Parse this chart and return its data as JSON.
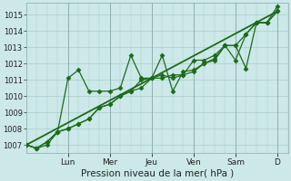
{
  "bg_color": "#cce8e8",
  "grid_color": "#aacccc",
  "line_color": "#1a6b1a",
  "marker_color": "#1a6b1a",
  "xlabel": "Pression niveau de la mer( hPa )",
  "ylim": [
    1006.5,
    1015.7
  ],
  "yticks": [
    1007,
    1008,
    1009,
    1010,
    1011,
    1012,
    1013,
    1014,
    1015
  ],
  "day_labels": [
    "Lun",
    "Mer",
    "Jeu",
    "Ven",
    "Sam",
    "D"
  ],
  "day_positions": [
    4,
    8,
    12,
    16,
    20,
    24
  ],
  "xlim": [
    0,
    25
  ],
  "series1_x": [
    0,
    1,
    2,
    3,
    4,
    5,
    6,
    7,
    8,
    9,
    10,
    11,
    12,
    13,
    14,
    15,
    16,
    17,
    18,
    19,
    20,
    21,
    22,
    23,
    24
  ],
  "series1_y": [
    1007.0,
    1006.8,
    1007.0,
    1007.8,
    1008.0,
    1008.3,
    1008.6,
    1009.3,
    1009.5,
    1010.0,
    1010.3,
    1010.5,
    1011.1,
    1011.3,
    1011.1,
    1011.3,
    1011.5,
    1012.0,
    1012.3,
    1013.1,
    1013.1,
    1013.8,
    1014.5,
    1014.5,
    1015.2
  ],
  "series2_x": [
    0,
    1,
    2,
    3,
    4,
    5,
    6,
    7,
    8,
    9,
    10,
    11,
    12,
    13,
    14,
    15,
    16,
    17,
    18,
    19,
    20,
    21,
    22,
    23,
    24
  ],
  "series2_y": [
    1007.0,
    1006.8,
    1007.2,
    1007.8,
    1011.1,
    1011.6,
    1010.3,
    1010.3,
    1010.3,
    1010.5,
    1012.5,
    1011.1,
    1011.1,
    1011.1,
    1011.3,
    1011.3,
    1012.2,
    1012.2,
    1012.5,
    1013.1,
    1012.2,
    1013.8,
    1014.5,
    1014.5,
    1015.2
  ],
  "series3_x": [
    0,
    1,
    2,
    3,
    4,
    5,
    6,
    7,
    8,
    9,
    10,
    11,
    12,
    13,
    14,
    15,
    16,
    17,
    18,
    19,
    20,
    21,
    22,
    23,
    24
  ],
  "series3_y": [
    1007.0,
    1006.8,
    1007.2,
    1007.8,
    1008.0,
    1008.3,
    1008.6,
    1009.3,
    1009.5,
    1010.0,
    1010.3,
    1011.0,
    1011.1,
    1012.5,
    1010.3,
    1011.5,
    1011.6,
    1012.0,
    1012.2,
    1013.1,
    1013.1,
    1011.7,
    1014.5,
    1014.5,
    1015.5
  ],
  "trend_x": [
    0,
    24
  ],
  "trend_y": [
    1007.0,
    1015.2
  ],
  "xlabel_fontsize": 7.5,
  "ytick_fontsize": 6,
  "xtick_fontsize": 6.5
}
